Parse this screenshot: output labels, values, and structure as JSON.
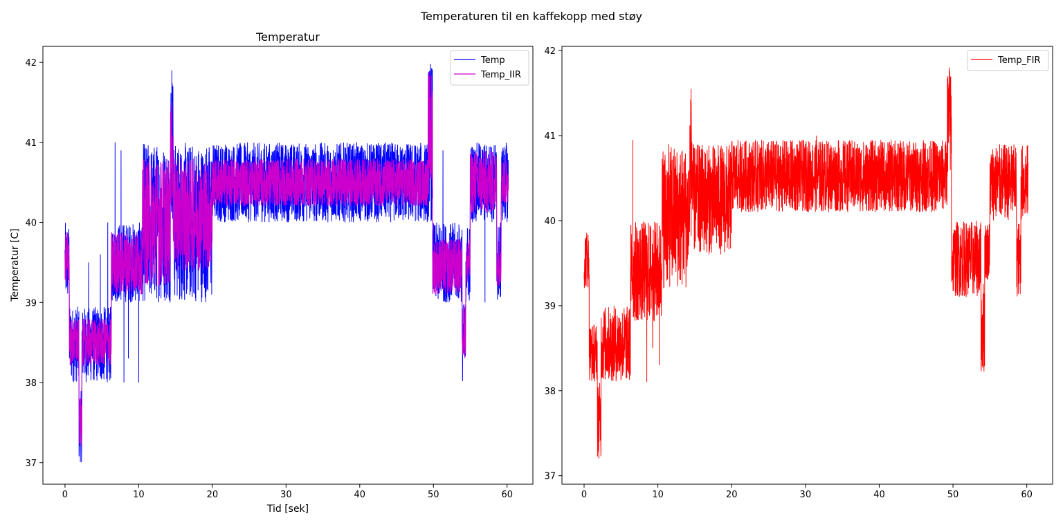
{
  "figure": {
    "suptitle": "Temperaturen til en kaffekopp med støy"
  },
  "chart_data": [
    {
      "type": "line",
      "title": "Temperatur",
      "xlabel": "Tid [sek]",
      "ylabel": "Temperatur [C]",
      "xlim": [
        -3,
        63.5
      ],
      "ylim": [
        36.73,
        42.2
      ],
      "xticks": [
        0,
        10,
        20,
        30,
        40,
        50,
        60
      ],
      "yticks": [
        37,
        38,
        39,
        40,
        41,
        42
      ],
      "grid": false,
      "legend_position": "top-right",
      "series": [
        {
          "name": "Temp",
          "color": "#0000ff",
          "segments": [
            {
              "x0": 0.0,
              "x1": 0.6,
              "lo": 39.0,
              "hi": 40.0
            },
            {
              "x0": 0.6,
              "x1": 1.9,
              "lo": 38.0,
              "hi": 38.95
            },
            {
              "x0": 1.9,
              "x1": 2.3,
              "lo": 37.0,
              "hi": 37.9
            },
            {
              "x0": 2.3,
              "x1": 6.3,
              "lo": 38.0,
              "hi": 38.95
            },
            {
              "x0": 6.3,
              "x1": 10.5,
              "lo": 39.0,
              "hi": 40.0
            },
            {
              "x0": 10.5,
              "x1": 14.3,
              "lo": 39.0,
              "hi": 41.0
            },
            {
              "x0": 14.3,
              "x1": 14.7,
              "lo": 40.0,
              "hi": 41.9
            },
            {
              "x0": 14.7,
              "x1": 20.0,
              "lo": 39.0,
              "hi": 41.0
            },
            {
              "x0": 20.0,
              "x1": 49.3,
              "lo": 40.0,
              "hi": 41.0
            },
            {
              "x0": 49.3,
              "x1": 49.9,
              "lo": 40.0,
              "hi": 41.98
            },
            {
              "x0": 49.9,
              "x1": 53.9,
              "lo": 39.0,
              "hi": 40.0
            },
            {
              "x0": 53.9,
              "x1": 54.4,
              "lo": 38.0,
              "hi": 39.0
            },
            {
              "x0": 54.4,
              "x1": 55.0,
              "lo": 39.0,
              "hi": 40.0
            },
            {
              "x0": 55.0,
              "x1": 58.6,
              "lo": 40.0,
              "hi": 41.0
            },
            {
              "x0": 58.6,
              "x1": 59.2,
              "lo": 39.0,
              "hi": 40.0
            },
            {
              "x0": 59.2,
              "x1": 60.2,
              "lo": 40.0,
              "hi": 41.0
            }
          ],
          "spikes": [
            [
              3.2,
              39.5
            ],
            [
              4.8,
              39.6
            ],
            [
              5.8,
              40.0
            ],
            [
              6.8,
              41.0
            ],
            [
              7.6,
              40.9
            ],
            [
              8.0,
              38.0
            ],
            [
              8.6,
              38.3
            ],
            [
              10.0,
              38.0
            ],
            [
              14.5,
              41.9
            ],
            [
              49.6,
              41.98
            ],
            [
              51.3,
              40.9
            ],
            [
              57.0,
              39.0
            ]
          ]
        },
        {
          "name": "Temp_IIR",
          "color": "#cc00cc",
          "segments": [
            {
              "x0": 0.0,
              "x1": 0.6,
              "lo": 39.2,
              "hi": 39.9
            },
            {
              "x0": 0.6,
              "x1": 1.9,
              "lo": 38.2,
              "hi": 38.8
            },
            {
              "x0": 1.9,
              "x1": 2.3,
              "lo": 37.2,
              "hi": 37.8
            },
            {
              "x0": 2.3,
              "x1": 6.3,
              "lo": 38.2,
              "hi": 38.8
            },
            {
              "x0": 6.3,
              "x1": 10.5,
              "lo": 39.1,
              "hi": 39.9
            },
            {
              "x0": 10.5,
              "x1": 14.3,
              "lo": 39.2,
              "hi": 40.8
            },
            {
              "x0": 14.3,
              "x1": 14.7,
              "lo": 40.2,
              "hi": 41.5
            },
            {
              "x0": 14.7,
              "x1": 20.0,
              "lo": 39.4,
              "hi": 40.8
            },
            {
              "x0": 20.0,
              "x1": 49.3,
              "lo": 40.2,
              "hi": 40.8
            },
            {
              "x0": 49.3,
              "x1": 49.9,
              "lo": 40.3,
              "hi": 41.9
            },
            {
              "x0": 49.9,
              "x1": 53.9,
              "lo": 39.1,
              "hi": 39.8
            },
            {
              "x0": 53.9,
              "x1": 54.4,
              "lo": 38.3,
              "hi": 39.0
            },
            {
              "x0": 54.4,
              "x1": 55.0,
              "lo": 39.2,
              "hi": 39.8
            },
            {
              "x0": 55.0,
              "x1": 58.6,
              "lo": 40.1,
              "hi": 40.9
            },
            {
              "x0": 58.6,
              "x1": 59.2,
              "lo": 39.2,
              "hi": 39.8
            },
            {
              "x0": 59.2,
              "x1": 60.2,
              "lo": 40.2,
              "hi": 40.8
            }
          ],
          "spikes": []
        }
      ]
    },
    {
      "type": "line",
      "title": "",
      "xlabel": "",
      "ylabel": "",
      "xlim": [
        -3,
        63.5
      ],
      "ylim": [
        36.9,
        42.05
      ],
      "xticks": [
        0,
        10,
        20,
        30,
        40,
        50,
        60
      ],
      "yticks": [
        37,
        38,
        39,
        40,
        41,
        42
      ],
      "grid": false,
      "legend_position": "top-right",
      "series": [
        {
          "name": "Temp_FIR",
          "color": "#ff0000",
          "segments": [
            {
              "x0": 0.0,
              "x1": 0.7,
              "lo": 39.2,
              "hi": 39.9
            },
            {
              "x0": 0.7,
              "x1": 1.8,
              "lo": 38.1,
              "hi": 38.8
            },
            {
              "x0": 1.8,
              "x1": 2.3,
              "lo": 37.2,
              "hi": 38.1
            },
            {
              "x0": 2.3,
              "x1": 6.3,
              "lo": 38.1,
              "hi": 39.0
            },
            {
              "x0": 6.3,
              "x1": 10.5,
              "lo": 38.8,
              "hi": 40.0
            },
            {
              "x0": 10.5,
              "x1": 14.3,
              "lo": 39.2,
              "hi": 40.9
            },
            {
              "x0": 14.3,
              "x1": 14.7,
              "lo": 39.8,
              "hi": 41.5
            },
            {
              "x0": 14.7,
              "x1": 20.0,
              "lo": 39.6,
              "hi": 40.9
            },
            {
              "x0": 20.0,
              "x1": 49.2,
              "lo": 40.1,
              "hi": 40.95
            },
            {
              "x0": 49.2,
              "x1": 49.8,
              "lo": 40.5,
              "hi": 41.8
            },
            {
              "x0": 49.8,
              "x1": 53.8,
              "lo": 39.1,
              "hi": 40.0
            },
            {
              "x0": 53.8,
              "x1": 54.3,
              "lo": 38.2,
              "hi": 39.3
            },
            {
              "x0": 54.3,
              "x1": 55.0,
              "lo": 39.3,
              "hi": 40.0
            },
            {
              "x0": 55.0,
              "x1": 58.6,
              "lo": 40.0,
              "hi": 40.9
            },
            {
              "x0": 58.6,
              "x1": 59.2,
              "lo": 39.1,
              "hi": 40.0
            },
            {
              "x0": 59.2,
              "x1": 60.2,
              "lo": 40.0,
              "hi": 40.9
            }
          ],
          "spikes": [
            [
              6.6,
              40.95
            ],
            [
              8.5,
              38.1
            ],
            [
              9.3,
              38.5
            ],
            [
              10.2,
              38.3
            ],
            [
              14.5,
              41.55
            ],
            [
              31.5,
              41.0
            ],
            [
              49.5,
              41.8
            ]
          ]
        }
      ]
    }
  ]
}
